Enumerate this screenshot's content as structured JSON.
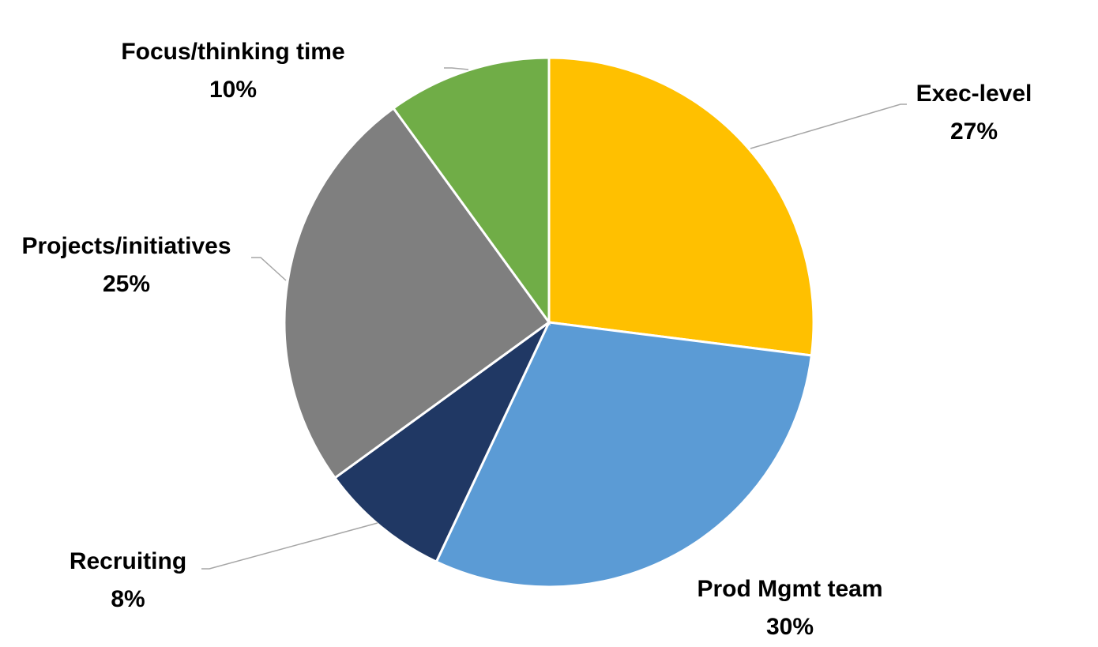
{
  "chart_data": {
    "type": "pie",
    "categories": [
      "Exec-level",
      "Prod Mgmt team",
      "Recruiting",
      "Projects/initiatives",
      "Focus/thinking time"
    ],
    "values": [
      27,
      30,
      8,
      25,
      10
    ],
    "value_labels": [
      "27%",
      "30%",
      "8%",
      "25%",
      "10%"
    ],
    "colors": [
      "#FFC000",
      "#5B9BD5",
      "#203864",
      "#7F7F7F",
      "#70AD47"
    ]
  }
}
